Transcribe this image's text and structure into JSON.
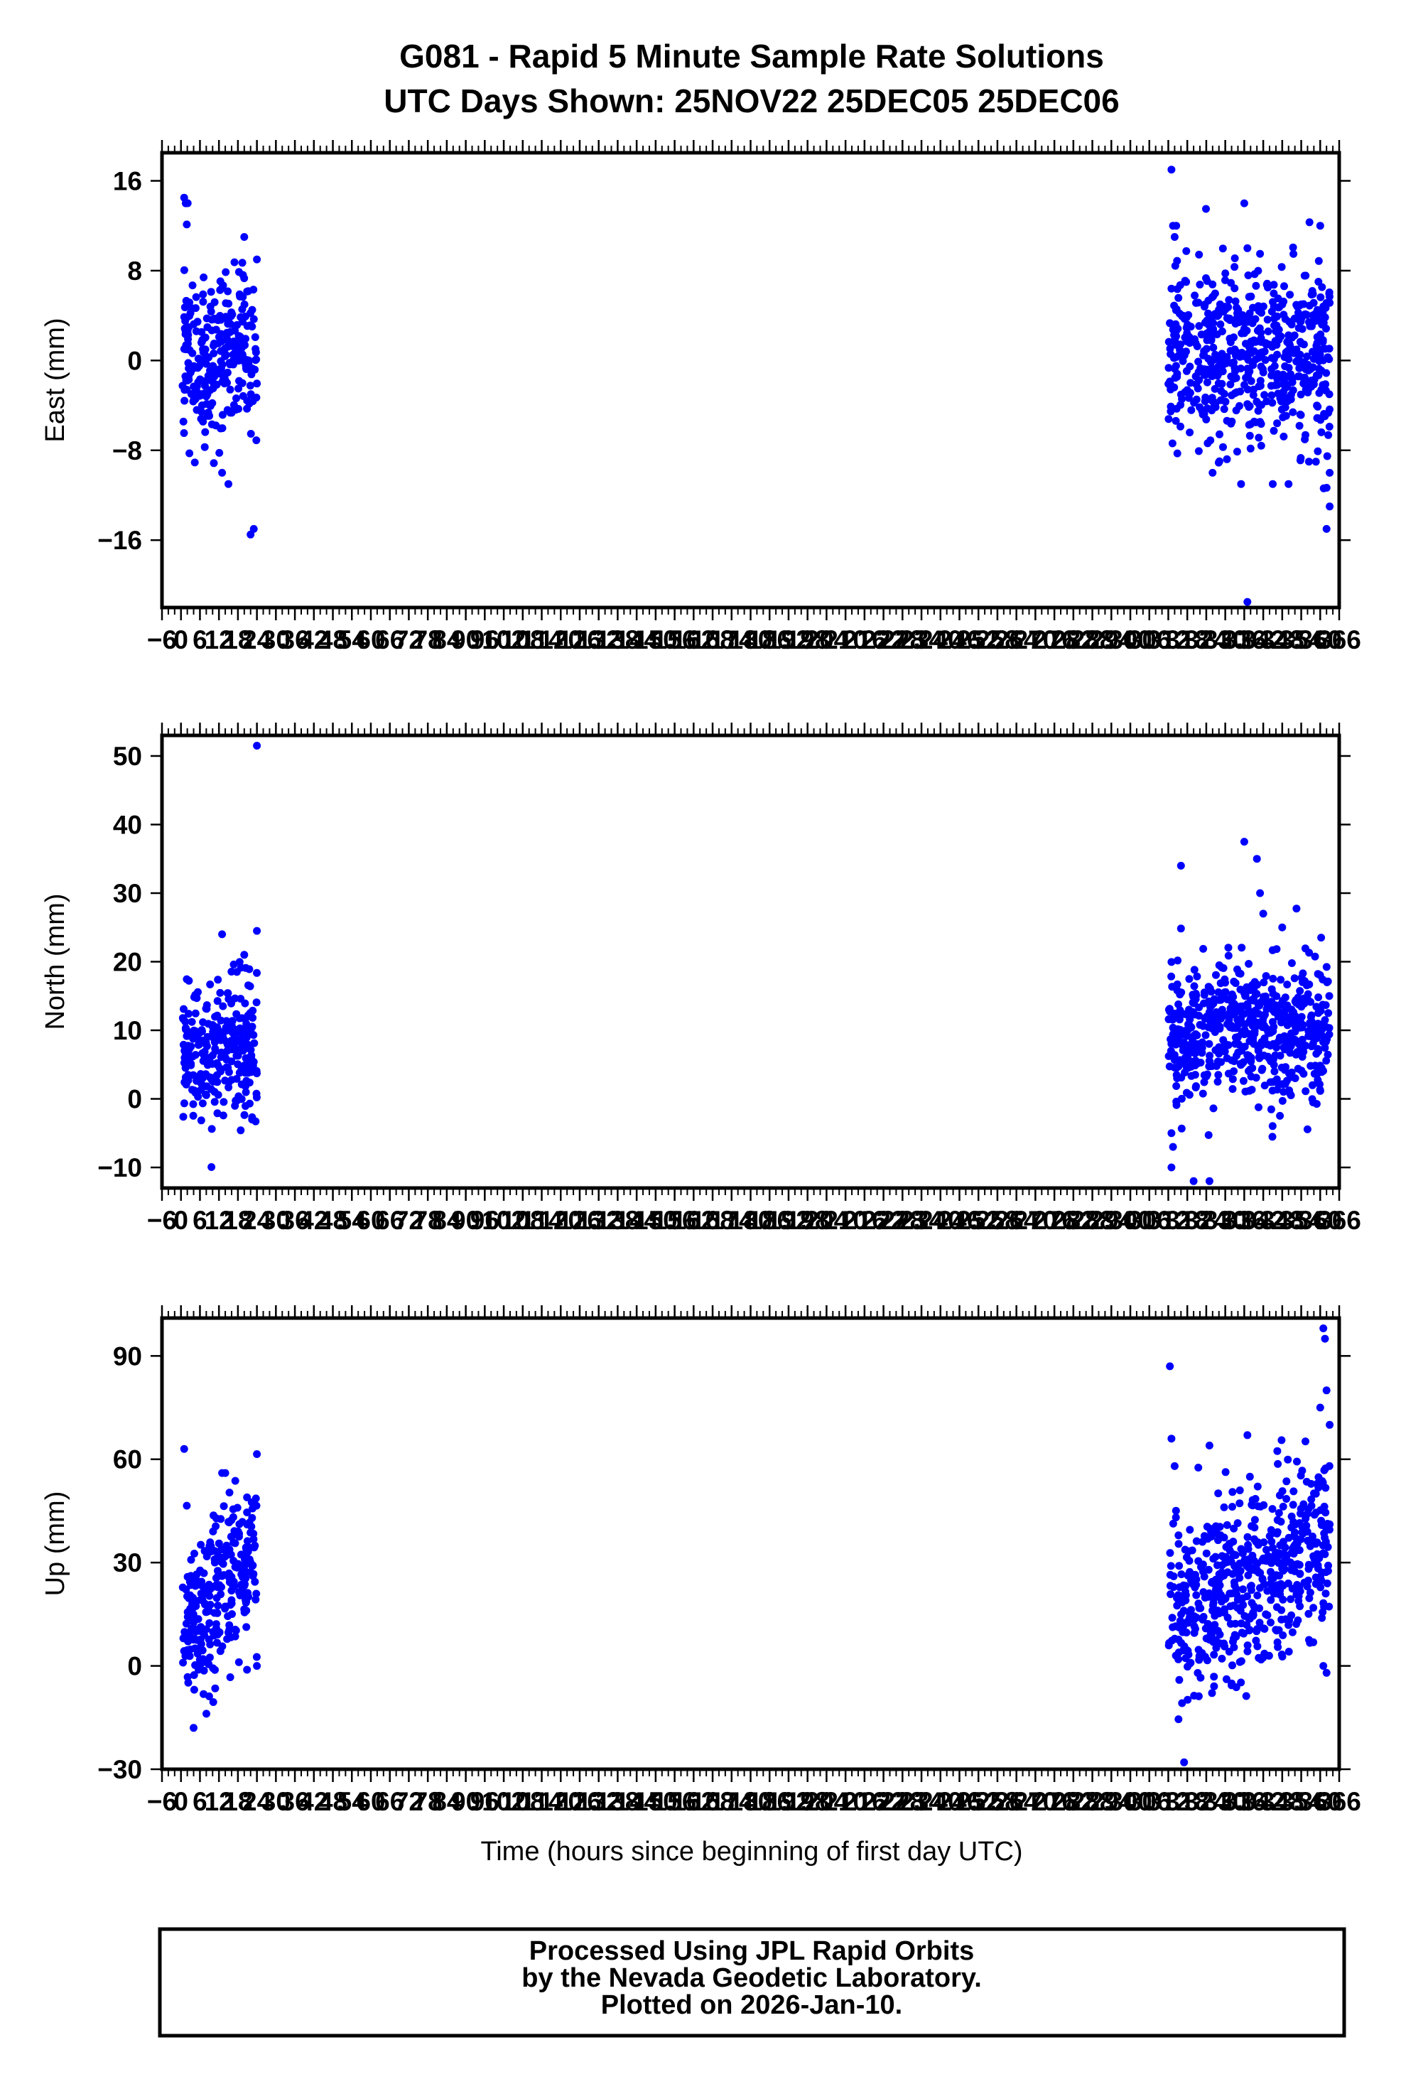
{
  "figure": {
    "title_line1": "G081 - Rapid 5 Minute Sample Rate Solutions",
    "title_line2": "UTC Days Shown:  25NOV22 25DEC05 25DEC06"
  },
  "footer": {
    "line1": "Processed Using JPL Rapid Orbits",
    "line2": "by the Nevada Geodetic Laboratory.",
    "line3": "Plotted on 2026-Jan-10."
  },
  "colors": {
    "points": "#0000ff",
    "axes": "#000000",
    "background": "#ffffff"
  },
  "chart_data": [
    {
      "type": "scatter",
      "name": "east",
      "ylabel": "East (mm)",
      "xlabel": "",
      "xlim": [
        -6,
        366
      ],
      "ylim": [
        -22,
        18.5
      ],
      "yticks": [
        -16,
        -8,
        0,
        8,
        16
      ],
      "ytick_labels": [
        "−16",
        "−8",
        "0",
        "8",
        "16"
      ],
      "grid": false,
      "clusters": [
        {
          "x_range": [
            0.5,
            24
          ],
          "mean": 0.5,
          "sd": 3.8,
          "n": 280
        },
        {
          "x_range": [
            312,
            363
          ],
          "mean": 0.5,
          "sd": 4.2,
          "n": 580
        }
      ],
      "outliers": [
        [
          1,
          14.5
        ],
        [
          1.5,
          14
        ],
        [
          20,
          11
        ],
        [
          24,
          9
        ],
        [
          22,
          -15.5
        ],
        [
          23,
          -15
        ],
        [
          13,
          -10
        ],
        [
          15,
          -11
        ],
        [
          313,
          17
        ],
        [
          313.5,
          12
        ],
        [
          314,
          11
        ],
        [
          314.5,
          12
        ],
        [
          336,
          14
        ],
        [
          337,
          10
        ],
        [
          341,
          9.5
        ],
        [
          360,
          12
        ],
        [
          362,
          -15
        ],
        [
          363,
          -13
        ],
        [
          363,
          -10
        ],
        [
          335,
          -11
        ],
        [
          345,
          -11
        ],
        [
          350,
          -11
        ],
        [
          337,
          -21.5
        ],
        [
          326,
          -10
        ]
      ]
    },
    {
      "type": "scatter",
      "name": "north",
      "ylabel": "North (mm)",
      "xlabel": "",
      "xlim": [
        -6,
        366
      ],
      "ylim": [
        -13,
        53
      ],
      "yticks": [
        -10,
        0,
        10,
        20,
        30,
        40,
        50
      ],
      "ytick_labels": [
        "−10",
        "0",
        "10",
        "20",
        "30",
        "40",
        "50"
      ],
      "grid": false,
      "clusters": [
        {
          "x_range": [
            0.5,
            24
          ],
          "mean": 7.5,
          "sd": 4.8,
          "n": 280
        },
        {
          "x_range": [
            312,
            363
          ],
          "mean": 10,
          "sd": 5.2,
          "n": 580
        }
      ],
      "outliers": [
        [
          24,
          51.5
        ],
        [
          24,
          24.5
        ],
        [
          13,
          24
        ],
        [
          20,
          21
        ],
        [
          313,
          -10
        ],
        [
          313.5,
          -7
        ],
        [
          316,
          34
        ],
        [
          320,
          -12
        ],
        [
          325,
          -12
        ],
        [
          336,
          37.5
        ],
        [
          340,
          35
        ],
        [
          341,
          30
        ],
        [
          342,
          27
        ],
        [
          313,
          -5
        ],
        [
          348,
          25
        ]
      ]
    },
    {
      "type": "scatter",
      "name": "up",
      "ylabel": "Up (mm)",
      "xlabel": "Time (hours since beginning of first day UTC)",
      "xlim": [
        -6,
        366
      ],
      "ylim": [
        -30,
        101
      ],
      "yticks": [
        -30,
        0,
        30,
        60,
        90
      ],
      "ytick_labels": [
        "−30",
        "0",
        "30",
        "60",
        "90"
      ],
      "grid": false,
      "clusters": [
        {
          "x_range": [
            0.5,
            24
          ],
          "mean": 20,
          "sd": 12,
          "n": 280
        },
        {
          "x_range": [
            312,
            363
          ],
          "mean": 25,
          "sd": 13,
          "n": 580
        }
      ],
      "outliers": [
        [
          1,
          63
        ],
        [
          24,
          61.5
        ],
        [
          13,
          56
        ],
        [
          14,
          56
        ],
        [
          4,
          -18
        ],
        [
          312.5,
          87
        ],
        [
          313,
          66
        ],
        [
          314,
          58
        ],
        [
          317,
          -28
        ],
        [
          325,
          64
        ],
        [
          337,
          67
        ],
        [
          361,
          98
        ],
        [
          361.5,
          95
        ],
        [
          362,
          80
        ],
        [
          360,
          75
        ],
        [
          363,
          70
        ],
        [
          361,
          0
        ],
        [
          362,
          -2
        ],
        [
          24,
          0
        ]
      ]
    }
  ]
}
